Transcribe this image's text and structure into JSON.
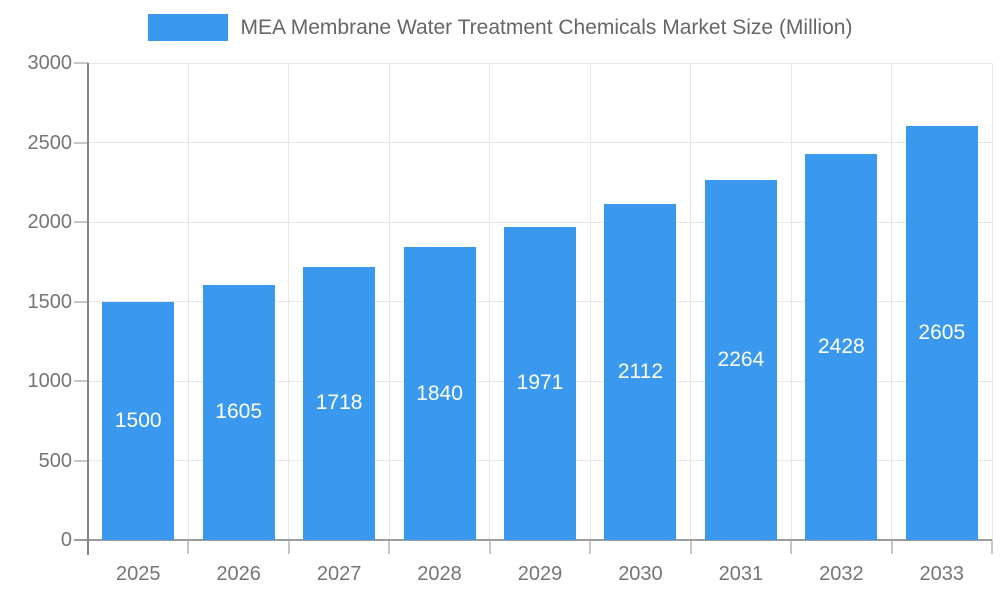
{
  "legend": {
    "label": "MEA Membrane Water Treatment Chemicals Market Size (Million)"
  },
  "chart_data": {
    "type": "bar",
    "title": "MEA Membrane Water Treatment Chemicals Market Size (Million)",
    "categories": [
      "2025",
      "2026",
      "2027",
      "2028",
      "2029",
      "2030",
      "2031",
      "2032",
      "2033"
    ],
    "series": [
      {
        "name": "MEA Membrane Water Treatment Chemicals Market Size (Million)",
        "values": [
          1500,
          1605,
          1718,
          1840,
          1971,
          2112,
          2264,
          2428,
          2605
        ]
      }
    ],
    "xlabel": "",
    "ylabel": "",
    "ylim": [
      0,
      3000
    ],
    "yticks": [
      0,
      500,
      1000,
      1500,
      2000,
      2500,
      3000
    ],
    "grid": true,
    "legend_position": "top",
    "value_label_position": "inside-center",
    "colors": {
      "bar": "#3A99EE",
      "value_label": "#ffffff",
      "axis_text": "#757575",
      "legend_text": "#666666",
      "gridline": "#e7e7e7",
      "y_axis_line": "#848484",
      "x_axis_line": "#9b9b9b",
      "tick": "#c6c6c6",
      "background": "#ffffff"
    }
  }
}
